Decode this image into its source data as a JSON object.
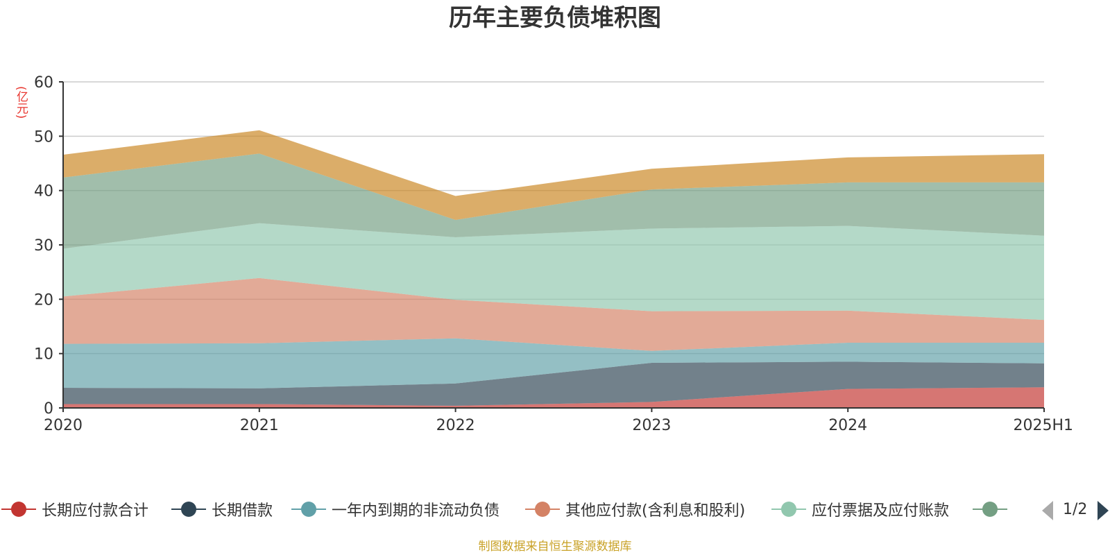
{
  "chart_data": {
    "type": "area",
    "stacked": true,
    "title": "历年主要负债堆积图",
    "ylabel": "(亿元)",
    "ylabel_color": "#e8362f",
    "x": [
      "2020",
      "2021",
      "2022",
      "2023",
      "2024",
      "2025H1"
    ],
    "ylim": [
      0,
      60
    ],
    "yticks": [
      0,
      10,
      20,
      30,
      40,
      50,
      60
    ],
    "grid": true,
    "series": [
      {
        "name": "长期应付款合计",
        "color": "#c23531",
        "values": [
          0.7,
          0.7,
          0.4,
          1.1,
          3.5,
          3.8
        ]
      },
      {
        "name": "长期借款",
        "color": "#2f4554",
        "values": [
          3.0,
          2.9,
          4.1,
          7.2,
          5.0,
          4.4
        ]
      },
      {
        "name": "一年内到期的非流动负债",
        "color": "#61a0a8",
        "values": [
          8.1,
          8.3,
          8.3,
          2.2,
          3.5,
          3.8
        ]
      },
      {
        "name": "其他应付款(含利息和股利)",
        "color": "#d48265",
        "values": [
          8.7,
          12.0,
          7.1,
          7.3,
          5.9,
          4.2
        ]
      },
      {
        "name": "应付票据及应付账款",
        "color": "#91c7ae",
        "values": [
          8.8,
          10.1,
          11.5,
          15.2,
          15.6,
          15.5
        ]
      },
      {
        "name": "",
        "color": "#749f83",
        "values": [
          13.1,
          12.8,
          3.2,
          7.2,
          8.0,
          9.8
        ]
      },
      {
        "name": "",
        "color": "#ca8622",
        "values": [
          4.2,
          4.3,
          4.4,
          3.8,
          4.6,
          5.2
        ]
      }
    ],
    "legend": {
      "position": "bottom",
      "page": "1/2"
    }
  },
  "source_text": "制图数据来自恒生聚源数据库",
  "source_color": "#c9a227"
}
